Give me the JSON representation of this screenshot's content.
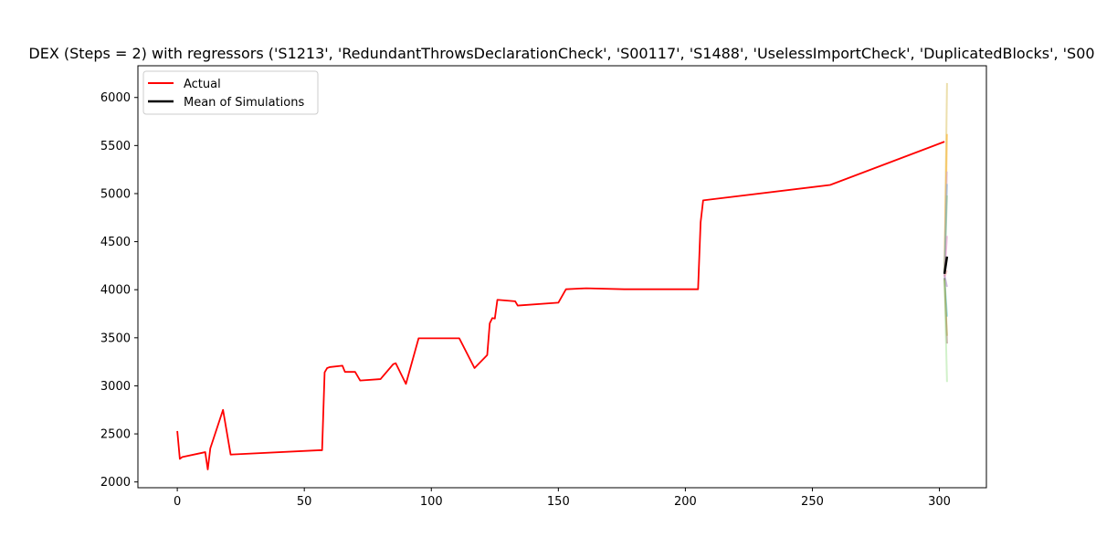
{
  "chart_data": {
    "type": "line",
    "title": "DEX (Steps = 2) with regressors ('S1213', 'RedundantThrowsDeclarationCheck', 'S00117', 'S1488', 'UselessImportCheck', 'DuplicatedBlocks', 'S00",
    "xlabel": "",
    "ylabel": "",
    "xlim": [
      -15.5,
      318.5
    ],
    "ylim": [
      1940,
      6330
    ],
    "xticks": [
      0,
      50,
      100,
      150,
      200,
      250,
      300
    ],
    "yticks": [
      2000,
      2500,
      3000,
      3500,
      4000,
      4500,
      5000,
      5500,
      6000
    ],
    "legend": {
      "placement": "top-left",
      "entries": [
        {
          "label": "Actual",
          "color": "#ff0000"
        },
        {
          "label": "Mean of Simulations",
          "color": "#000000"
        }
      ]
    },
    "series": [
      {
        "name": "Actual",
        "color": "#ff0000",
        "x": [
          0,
          1,
          2,
          11,
          12,
          13,
          18,
          21,
          56,
          57,
          58,
          59,
          60,
          65,
          66,
          70,
          72,
          80,
          85,
          86,
          90,
          95,
          111,
          117,
          122,
          123,
          124,
          125,
          126,
          133,
          134,
          150,
          153,
          161,
          176,
          205,
          206,
          207,
          257,
          302
        ],
        "y": [
          2530,
          2240,
          2260,
          2310,
          2130,
          2350,
          2750,
          2285,
          2330,
          2330,
          3140,
          3185,
          3195,
          3210,
          3145,
          3145,
          3055,
          3070,
          3225,
          3235,
          3020,
          3495,
          3495,
          3185,
          3320,
          3650,
          3705,
          3700,
          3895,
          3880,
          3835,
          3865,
          4005,
          4015,
          4005,
          4005,
          4700,
          4930,
          5090,
          5540
        ]
      },
      {
        "name": "Mean of Simulations",
        "color": "#000000",
        "x": [
          302,
          303
        ],
        "y": [
          4165,
          4345
        ]
      }
    ],
    "simulations": [
      {
        "color": "#d4b84a",
        "x": [
          302,
          303
        ],
        "y": [
          4200,
          6150
        ]
      },
      {
        "color": "#ffa500",
        "x": [
          302,
          303
        ],
        "y": [
          4180,
          5620
        ]
      },
      {
        "color": "#c9a0dc",
        "x": [
          302,
          303
        ],
        "y": [
          4160,
          5230
        ]
      },
      {
        "color": "#6baed6",
        "x": [
          302,
          303
        ],
        "y": [
          4170,
          5100
        ]
      },
      {
        "color": "#7fbf7f",
        "x": [
          302,
          303
        ],
        "y": [
          4150,
          4980
        ]
      },
      {
        "color": "#e377c2",
        "x": [
          302,
          303
        ],
        "y": [
          4140,
          4560
        ]
      },
      {
        "color": "#ff9896",
        "x": [
          302,
          303
        ],
        "y": [
          4130,
          4200
        ]
      },
      {
        "color": "#9467bd",
        "x": [
          302,
          303
        ],
        "y": [
          4150,
          4030
        ]
      },
      {
        "color": "#17becf",
        "x": [
          302,
          303
        ],
        "y": [
          4120,
          3720
        ]
      },
      {
        "color": "#bcbd22",
        "x": [
          302,
          303
        ],
        "y": [
          4110,
          3520
        ]
      },
      {
        "color": "#8c564b",
        "x": [
          302,
          303
        ],
        "y": [
          4125,
          3440
        ]
      },
      {
        "color": "#98df8a",
        "x": [
          302,
          303
        ],
        "y": [
          4100,
          3040
        ]
      }
    ]
  }
}
